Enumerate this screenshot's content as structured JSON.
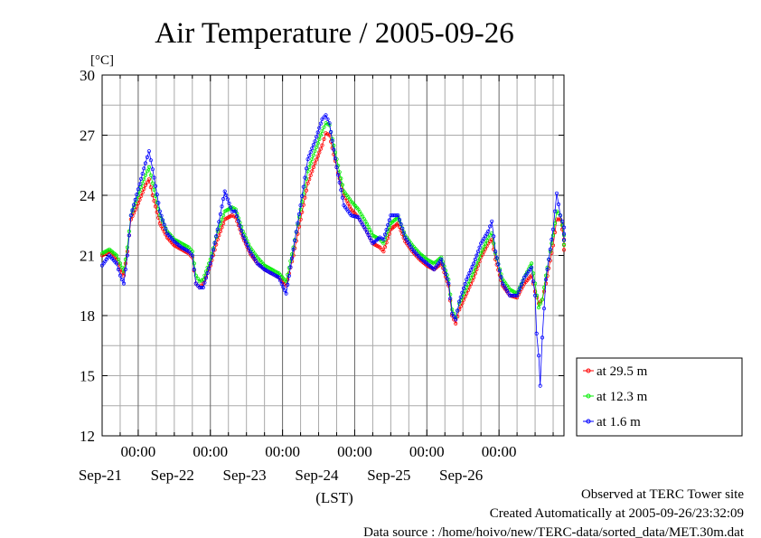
{
  "chart_data": {
    "type": "line",
    "title": "Air Temperature / 2005-09-26",
    "unit_label": "[°C]",
    "xlabel": "(LST)",
    "ylim": [
      12,
      30
    ],
    "y_ticks": [
      "12",
      "15",
      "18",
      "21",
      "24",
      "27",
      "30"
    ],
    "x_range_days": [
      20.5,
      26.9
    ],
    "midnight_ticks": [
      {
        "time": "00:00",
        "date": "Sep-21"
      },
      {
        "time": "00:00",
        "date": "Sep-22"
      },
      {
        "time": "00:00",
        "date": "Sep-23"
      },
      {
        "time": "00:00",
        "date": "Sep-24"
      },
      {
        "time": "00:00",
        "date": "Sep-25"
      },
      {
        "time": "00:00",
        "date": "Sep-26"
      }
    ],
    "grid": true,
    "legend_position": "right",
    "series": [
      {
        "name": "at 29.5 m",
        "color": "#ff0000",
        "points": [
          [
            20.5,
            21.0
          ],
          [
            20.6,
            21.2
          ],
          [
            20.7,
            20.8
          ],
          [
            20.75,
            20.3
          ],
          [
            20.8,
            20.0
          ],
          [
            20.85,
            21.2
          ],
          [
            20.9,
            22.8
          ],
          [
            21.0,
            23.6
          ],
          [
            21.1,
            24.5
          ],
          [
            21.15,
            24.8
          ],
          [
            21.2,
            24.0
          ],
          [
            21.3,
            22.6
          ],
          [
            21.4,
            21.9
          ],
          [
            21.5,
            21.5
          ],
          [
            21.6,
            21.3
          ],
          [
            21.7,
            21.1
          ],
          [
            21.75,
            20.9
          ],
          [
            21.8,
            19.6
          ],
          [
            21.85,
            19.4
          ],
          [
            21.9,
            19.6
          ],
          [
            22.0,
            20.5
          ],
          [
            22.1,
            21.8
          ],
          [
            22.2,
            22.8
          ],
          [
            22.3,
            23.0
          ],
          [
            22.35,
            22.9
          ],
          [
            22.45,
            21.9
          ],
          [
            22.55,
            21.1
          ],
          [
            22.65,
            20.6
          ],
          [
            22.75,
            20.3
          ],
          [
            22.85,
            20.1
          ],
          [
            22.95,
            19.9
          ],
          [
            23.05,
            19.5
          ],
          [
            23.15,
            21.0
          ],
          [
            23.25,
            22.8
          ],
          [
            23.35,
            24.6
          ],
          [
            23.45,
            25.6
          ],
          [
            23.55,
            26.5
          ],
          [
            23.6,
            27.1
          ],
          [
            23.65,
            27.0
          ],
          [
            23.75,
            25.4
          ],
          [
            23.85,
            24.0
          ],
          [
            23.95,
            23.3
          ],
          [
            24.05,
            22.9
          ],
          [
            24.15,
            22.3
          ],
          [
            24.25,
            21.6
          ],
          [
            24.35,
            21.4
          ],
          [
            24.4,
            21.2
          ],
          [
            24.5,
            22.3
          ],
          [
            24.6,
            22.6
          ],
          [
            24.7,
            21.7
          ],
          [
            24.8,
            21.2
          ],
          [
            24.9,
            20.8
          ],
          [
            25.0,
            20.5
          ],
          [
            25.1,
            20.3
          ],
          [
            25.2,
            20.6
          ],
          [
            25.3,
            19.5
          ],
          [
            25.35,
            18.0
          ],
          [
            25.4,
            17.6
          ],
          [
            25.45,
            18.3
          ],
          [
            25.55,
            19.1
          ],
          [
            25.65,
            19.9
          ],
          [
            25.75,
            20.9
          ],
          [
            25.85,
            21.6
          ],
          [
            25.9,
            21.8
          ],
          [
            25.95,
            20.8
          ],
          [
            26.05,
            19.5
          ],
          [
            26.15,
            19.0
          ],
          [
            26.25,
            18.9
          ],
          [
            26.35,
            19.6
          ],
          [
            26.45,
            20.0
          ],
          [
            26.5,
            19.2
          ],
          [
            26.55,
            18.6
          ],
          [
            26.6,
            18.8
          ],
          [
            26.65,
            19.6
          ],
          [
            26.75,
            21.5
          ],
          [
            26.8,
            22.8
          ],
          [
            26.85,
            22.8
          ],
          [
            26.9,
            21.8
          ],
          [
            27.0,
            20.5
          ],
          [
            27.1,
            18.5
          ],
          [
            27.2,
            18.5
          ],
          [
            27.3,
            18.6
          ],
          [
            27.37,
            18.2
          ]
        ]
      },
      {
        "name": "at 12.3 m",
        "color": "#00ee00",
        "points": [
          [
            20.5,
            21.1
          ],
          [
            20.6,
            21.3
          ],
          [
            20.7,
            21.0
          ],
          [
            20.75,
            20.6
          ],
          [
            20.8,
            20.2
          ],
          [
            20.85,
            21.4
          ],
          [
            20.9,
            23.0
          ],
          [
            21.0,
            24.0
          ],
          [
            21.1,
            25.0
          ],
          [
            21.15,
            25.4
          ],
          [
            21.2,
            24.6
          ],
          [
            21.3,
            23.0
          ],
          [
            21.4,
            22.2
          ],
          [
            21.5,
            21.8
          ],
          [
            21.6,
            21.6
          ],
          [
            21.7,
            21.4
          ],
          [
            21.75,
            21.2
          ],
          [
            21.8,
            20.0
          ],
          [
            21.85,
            19.7
          ],
          [
            21.9,
            19.8
          ],
          [
            22.0,
            20.8
          ],
          [
            22.1,
            22.2
          ],
          [
            22.2,
            23.2
          ],
          [
            22.3,
            23.4
          ],
          [
            22.35,
            23.3
          ],
          [
            22.45,
            22.2
          ],
          [
            22.55,
            21.4
          ],
          [
            22.65,
            20.9
          ],
          [
            22.75,
            20.5
          ],
          [
            22.85,
            20.3
          ],
          [
            22.95,
            20.1
          ],
          [
            23.05,
            19.7
          ],
          [
            23.15,
            21.4
          ],
          [
            23.25,
            23.3
          ],
          [
            23.35,
            25.2
          ],
          [
            23.45,
            26.2
          ],
          [
            23.55,
            27.2
          ],
          [
            23.6,
            27.6
          ],
          [
            23.65,
            27.5
          ],
          [
            23.75,
            25.8
          ],
          [
            23.85,
            24.2
          ],
          [
            23.95,
            23.7
          ],
          [
            24.05,
            23.3
          ],
          [
            24.15,
            22.7
          ],
          [
            24.25,
            22.0
          ],
          [
            24.35,
            21.8
          ],
          [
            24.4,
            21.6
          ],
          [
            24.5,
            22.6
          ],
          [
            24.6,
            22.9
          ],
          [
            24.7,
            22.0
          ],
          [
            24.8,
            21.5
          ],
          [
            24.9,
            21.1
          ],
          [
            25.0,
            20.8
          ],
          [
            25.1,
            20.6
          ],
          [
            25.2,
            20.9
          ],
          [
            25.3,
            19.8
          ],
          [
            25.35,
            18.3
          ],
          [
            25.4,
            17.9
          ],
          [
            25.45,
            18.6
          ],
          [
            25.55,
            19.4
          ],
          [
            25.65,
            20.2
          ],
          [
            25.75,
            21.1
          ],
          [
            25.85,
            21.9
          ],
          [
            25.9,
            22.1
          ],
          [
            25.95,
            21.1
          ],
          [
            26.05,
            19.8
          ],
          [
            26.15,
            19.3
          ],
          [
            26.25,
            19.1
          ],
          [
            26.35,
            19.9
          ],
          [
            26.45,
            20.6
          ],
          [
            26.5,
            19.6
          ],
          [
            26.55,
            18.4
          ],
          [
            26.6,
            18.8
          ],
          [
            26.65,
            20.0
          ],
          [
            26.75,
            22.0
          ],
          [
            26.8,
            23.2
          ],
          [
            26.85,
            23.0
          ],
          [
            26.9,
            22.0
          ],
          [
            27.0,
            20.8
          ],
          [
            27.1,
            18.8
          ],
          [
            27.2,
            18.8
          ],
          [
            27.3,
            18.8
          ],
          [
            27.37,
            18.4
          ]
        ]
      },
      {
        "name": "at 1.6 m",
        "color": "#0000ff",
        "points": [
          [
            20.5,
            20.5
          ],
          [
            20.6,
            21.0
          ],
          [
            20.7,
            20.6
          ],
          [
            20.75,
            20.0
          ],
          [
            20.8,
            19.6
          ],
          [
            20.85,
            21.0
          ],
          [
            20.9,
            23.0
          ],
          [
            21.0,
            24.3
          ],
          [
            21.1,
            25.6
          ],
          [
            21.15,
            26.2
          ],
          [
            21.2,
            25.3
          ],
          [
            21.3,
            23.2
          ],
          [
            21.4,
            22.1
          ],
          [
            21.5,
            21.7
          ],
          [
            21.6,
            21.4
          ],
          [
            21.7,
            21.2
          ],
          [
            21.75,
            21.0
          ],
          [
            21.8,
            19.6
          ],
          [
            21.85,
            19.4
          ],
          [
            21.9,
            19.4
          ],
          [
            22.0,
            20.6
          ],
          [
            22.1,
            22.3
          ],
          [
            22.2,
            24.2
          ],
          [
            22.3,
            23.2
          ],
          [
            22.35,
            23.2
          ],
          [
            22.45,
            22.0
          ],
          [
            22.55,
            21.2
          ],
          [
            22.65,
            20.6
          ],
          [
            22.75,
            20.3
          ],
          [
            22.85,
            20.1
          ],
          [
            22.95,
            19.9
          ],
          [
            23.05,
            19.1
          ],
          [
            23.15,
            21.3
          ],
          [
            23.25,
            23.5
          ],
          [
            23.35,
            25.8
          ],
          [
            23.45,
            26.7
          ],
          [
            23.55,
            27.8
          ],
          [
            23.6,
            28.0
          ],
          [
            23.65,
            27.6
          ],
          [
            23.75,
            25.4
          ],
          [
            23.85,
            23.5
          ],
          [
            23.95,
            23.0
          ],
          [
            24.05,
            22.9
          ],
          [
            24.15,
            22.3
          ],
          [
            24.25,
            21.6
          ],
          [
            24.35,
            21.9
          ],
          [
            24.4,
            21.8
          ],
          [
            24.5,
            23.0
          ],
          [
            24.6,
            23.0
          ],
          [
            24.7,
            21.9
          ],
          [
            24.8,
            21.3
          ],
          [
            24.9,
            20.9
          ],
          [
            25.0,
            20.6
          ],
          [
            25.1,
            20.3
          ],
          [
            25.2,
            20.8
          ],
          [
            25.3,
            19.6
          ],
          [
            25.35,
            18.1
          ],
          [
            25.4,
            17.8
          ],
          [
            25.45,
            18.7
          ],
          [
            25.55,
            19.8
          ],
          [
            25.65,
            20.6
          ],
          [
            25.75,
            21.6
          ],
          [
            25.85,
            22.2
          ],
          [
            25.9,
            22.7
          ],
          [
            25.95,
            21.2
          ],
          [
            26.05,
            19.6
          ],
          [
            26.15,
            19.0
          ],
          [
            26.25,
            19.0
          ],
          [
            26.35,
            19.9
          ],
          [
            26.45,
            20.4
          ],
          [
            26.5,
            19.0
          ],
          [
            26.52,
            17.1
          ],
          [
            26.55,
            16.0
          ],
          [
            26.57,
            14.5
          ],
          [
            26.6,
            16.9
          ],
          [
            26.65,
            19.8
          ],
          [
            26.75,
            22.3
          ],
          [
            26.8,
            24.1
          ],
          [
            26.85,
            23.0
          ],
          [
            26.9,
            22.4
          ],
          [
            27.0,
            20.8
          ],
          [
            27.1,
            18.7
          ],
          [
            27.2,
            18.5
          ],
          [
            27.3,
            18.6
          ],
          [
            27.37,
            18.3
          ]
        ]
      }
    ]
  },
  "footer": {
    "observed": "Observed at TERC Tower site",
    "created": "Created Automatically at 2005-09-26/23:32:09",
    "source": "Data source : /home/hoivo/new/TERC-data/sorted_data/MET.30m.dat"
  }
}
